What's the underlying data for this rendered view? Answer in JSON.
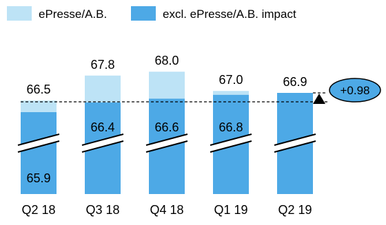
{
  "chart_data": {
    "type": "bar",
    "stacked": true,
    "broken_y_axis": true,
    "categories": [
      "Q2 18",
      "Q3 18",
      "Q4 18",
      "Q1 19",
      "Q2 19"
    ],
    "series": [
      {
        "name": "excl. ePresse/A.B. impact",
        "color": "#4da9e6",
        "values": [
          65.9,
          66.4,
          66.6,
          66.8,
          66.9
        ],
        "labels": [
          "65.9",
          "66.4",
          "66.6",
          "66.8",
          ""
        ]
      },
      {
        "name": "ePresse/A.B.",
        "color": "#bde3f6",
        "values": [
          0.6,
          1.4,
          1.4,
          0.2,
          0.0
        ]
      }
    ],
    "totals": [
      66.5,
      67.8,
      68.0,
      67.0,
      66.9
    ],
    "total_labels": [
      "66.5",
      "67.8",
      "68.0",
      "67.0",
      "66.9"
    ],
    "reference_value": 65.9,
    "annotation": {
      "text": "+0.98",
      "color": "#4da9e6"
    },
    "legend": {
      "position": "top-left",
      "entries": [
        {
          "label": "ePresse/A.B.",
          "color": "#bde3f6"
        },
        {
          "label": "excl. ePresse/A.B. impact",
          "color": "#4da9e6"
        }
      ]
    },
    "grid": false
  }
}
